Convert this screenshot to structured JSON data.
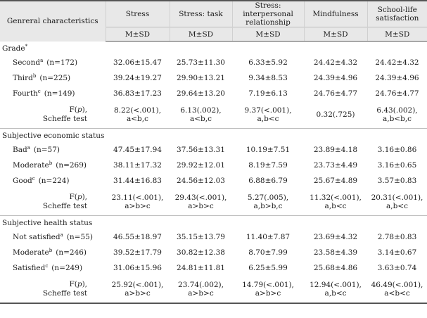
{
  "header": {
    "first_col": "Genreral characteristics",
    "columns": [
      "Stress",
      "Stress: task",
      "Stress: interpersonal relationship",
      "Mindfulness",
      "School-life satisfaction"
    ],
    "sub": "M±SD"
  },
  "sections": [
    {
      "title": "Grade",
      "title_sup": "*",
      "rows": [
        {
          "label": "Second",
          "sup": "a",
          "n": "(n=172)",
          "values": [
            "32.06±15.47",
            "25.73±11.30",
            "6.33±5.92",
            "24.42±4.32",
            "24.42±4.32"
          ]
        },
        {
          "label": "Third",
          "sup": "b",
          "n": "(n=225)",
          "values": [
            "39.24±19.27",
            "29.90±13.21",
            "9.34±8.53",
            "24.39±4.96",
            "24.39±4.96"
          ]
        },
        {
          "label": "Fourth",
          "sup": "c",
          "n": "(n=149)",
          "values": [
            "36.83±17.23",
            "29.64±13.20",
            "7.19±6.13",
            "24.76±4.77",
            "24.76±4.77"
          ]
        }
      ],
      "f_row": {
        "label1": "F(",
        "label_p": "p",
        "label2": "),",
        "label_test": "Scheffe test",
        "values": [
          {
            "l1": "8.22(<.001),",
            "l2": "a<b,c"
          },
          {
            "l1": "6.13(.002),",
            "l2": "a<b,c"
          },
          {
            "l1": "9.37(<.001),",
            "l2": "a,b<c"
          },
          {
            "l1": "0.32(.725)",
            "l2": ""
          },
          {
            "l1": "6.43(.002),",
            "l2": "a,b<b,c"
          }
        ]
      }
    },
    {
      "title": "Subjective economic status",
      "title_sup": "",
      "rows": [
        {
          "label": "Bad",
          "sup": "a",
          "n": "(n=57)",
          "values": [
            "47.45±17.94",
            "37.56±13.31",
            "10.19±7.51",
            "23.89±4.18",
            "3.16±0.86"
          ]
        },
        {
          "label": "Moderate",
          "sup": "b",
          "n": "(n=269)",
          "values": [
            "38.11±17.32",
            "29.92±12.01",
            "8.19±7.59",
            "23.73±4.49",
            "3.16±0.65"
          ]
        },
        {
          "label": "Good",
          "sup": "c",
          "n": "(n=224)",
          "values": [
            "31.44±16.83",
            "24.56±12.03",
            "6.88±6.79",
            "25.67±4.89",
            "3.57±0.83"
          ]
        }
      ],
      "f_row": {
        "label1": "F(",
        "label_p": "p",
        "label2": "),",
        "label_test": "Scheffe test",
        "values": [
          {
            "l1": "23.11(<.001),",
            "l2": "a>b>c"
          },
          {
            "l1": "29.43(<.001),",
            "l2": "a>b>c"
          },
          {
            "l1": "5.27(.005),",
            "l2": "a,b>b,c"
          },
          {
            "l1": "11.32(<.001),",
            "l2": "a,b<c"
          },
          {
            "l1": "20.31(<.001),",
            "l2": "a,b<c"
          }
        ]
      }
    },
    {
      "title": "Subjective health status",
      "title_sup": "",
      "rows": [
        {
          "label": "Not satisfied",
          "sup": "a",
          "n": "(n=55)",
          "values": [
            "46.55±18.97",
            "35.15±13.79",
            "11.40±7.87",
            "23.69±4.32",
            "2.78±0.83"
          ]
        },
        {
          "label": "Moderate",
          "sup": "b",
          "n": "(n=246)",
          "values": [
            "39.52±17.79",
            "30.82±12.38",
            "8.70±7.99",
            "23.58±4.39",
            "3.14±0.67"
          ]
        },
        {
          "label": "Satisfied",
          "sup": "c",
          "n": "(n=249)",
          "values": [
            "31.06±15.96",
            "24.81±11.81",
            "6.25±5.99",
            "25.68±4.86",
            "3.63±0.74"
          ]
        }
      ],
      "f_row": {
        "label1": "F(",
        "label_p": "p",
        "label2": "),",
        "label_test": "Scheffe test",
        "values": [
          {
            "l1": "25.92(<.001),",
            "l2": "a>b>c"
          },
          {
            "l1": "23.74(.002),",
            "l2": "a>b>c"
          },
          {
            "l1": "14.79(<.001),",
            "l2": "a>b>c"
          },
          {
            "l1": "12.94(<.001),",
            "l2": "a,b<c"
          },
          {
            "l1": "46.49(<.001),",
            "l2": "a<b<c"
          }
        ]
      }
    }
  ]
}
